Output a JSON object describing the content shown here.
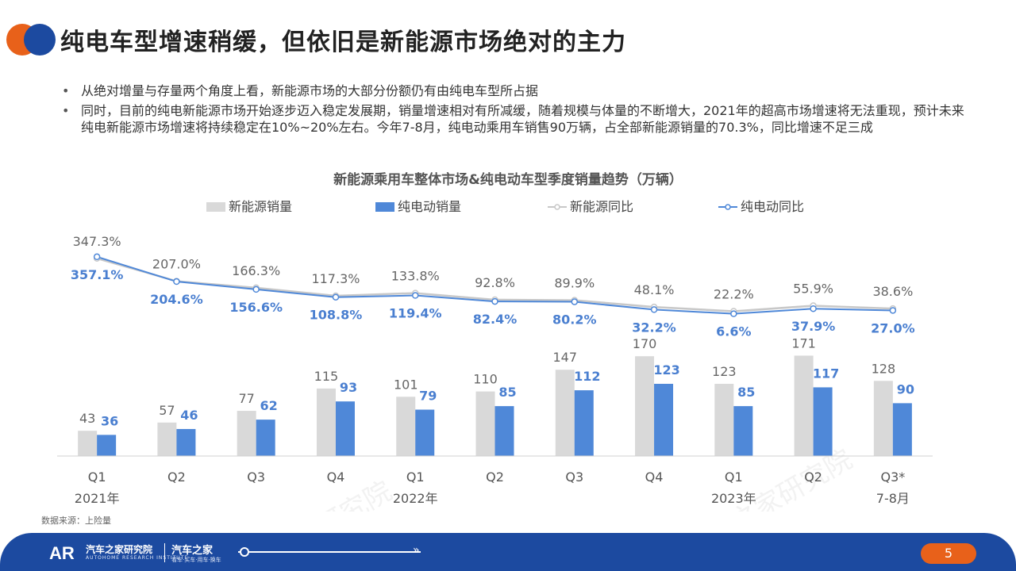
{
  "header": {
    "title": "纯电车型增速稍缓，但依旧是新能源市场绝对的主力",
    "accent_colors": [
      "#e8611a",
      "#1c4aa0"
    ]
  },
  "bullets": [
    "从绝对增量与存量两个角度上看，新能源市场的大部分份额仍有由纯电车型所占据",
    "同时，目前的纯电新能源市场开始逐步迈入稳定发展期，销量增速相对有所减缓，随着规模与体量的不断增大，2021年的超高市场增速将无法重现，预计未来纯电新能源市场增速将持续稳定在10%~20%左右。今年7-8月，纯电动乘用车销售90万辆，占全部新能源销量的70.3%，同比增速不足三成"
  ],
  "source": "数据来源：上险量",
  "footer": {
    "brand_name": "汽车之家研究院",
    "brand_sub": "AUTOHOME RESEARCH INSTITUTE",
    "brand_logo_text": "AR",
    "brand2_name": "汽车之家",
    "brand2_sub": "看车·买车·用车·换车",
    "page_number": "5"
  },
  "watermark": "汽车之家研究院",
  "chart_data": {
    "type": "bar",
    "title": "新能源乘用车整体市场&纯电动车型季度销量趋势（万辆）",
    "categories": [
      "Q1",
      "Q2",
      "Q3",
      "Q4",
      "Q1",
      "Q2",
      "Q3",
      "Q4",
      "Q1",
      "Q2",
      "Q3*"
    ],
    "category_groups": [
      {
        "label": "2021年",
        "under_index": 0
      },
      {
        "label": "2022年",
        "under_index": 4
      },
      {
        "label": "2023年",
        "under_index": 8
      },
      {
        "label": "7-8月",
        "under_index": 10
      }
    ],
    "series": [
      {
        "name": "新能源销量",
        "kind": "bar",
        "color": "#d9d9d9",
        "label_color": "#666666",
        "values": [
          43,
          57,
          77,
          115,
          101,
          110,
          147,
          170,
          123,
          171,
          128
        ]
      },
      {
        "name": "纯电动销量",
        "kind": "bar",
        "color": "#4f88d8",
        "label_color": "#4a7fd0",
        "values": [
          36,
          46,
          62,
          93,
          79,
          85,
          112,
          123,
          85,
          117,
          90
        ]
      },
      {
        "name": "新能源同比",
        "kind": "line",
        "color": "#c8c8c8",
        "label_color": "#666666",
        "values": [
          347.3,
          207.0,
          166.3,
          117.3,
          133.8,
          92.8,
          89.9,
          48.1,
          22.2,
          55.9,
          38.6
        ],
        "labels": [
          "347.3%",
          "207.0%",
          "166.3%",
          "117.3%",
          "133.8%",
          "92.8%",
          "89.9%",
          "48.1%",
          "22.2%",
          "55.9%",
          "38.6%"
        ]
      },
      {
        "name": "纯电动同比",
        "kind": "line",
        "color": "#4f88d8",
        "label_color": "#4a7fd0",
        "values": [
          357.1,
          204.6,
          156.6,
          108.8,
          119.4,
          82.4,
          80.2,
          32.2,
          6.6,
          37.9,
          27.0
        ],
        "labels": [
          "357.1%",
          "204.6%",
          "156.6%",
          "108.8%",
          "119.4%",
          "82.4%",
          "80.2%",
          "32.2%",
          "6.6%",
          "37.9%",
          "27.0%"
        ]
      }
    ],
    "legend_position": "top",
    "grid": false
  }
}
